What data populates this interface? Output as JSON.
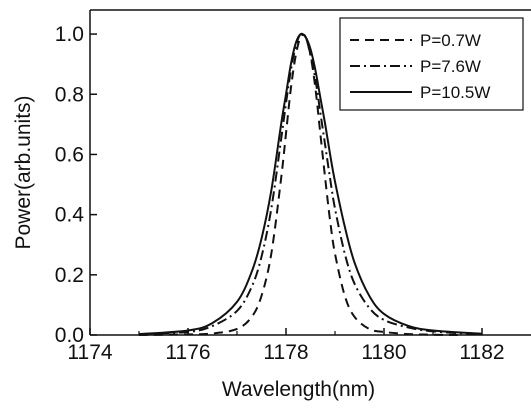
{
  "chart_data": {
    "type": "line",
    "title": "",
    "xlabel": "Wavelength(nm)",
    "ylabel": "Power(arb.units)",
    "xlim": [
      1174,
      1183
    ],
    "ylim": [
      0.0,
      1.08
    ],
    "xticks": [
      1174,
      1176,
      1178,
      1180,
      1182
    ],
    "xtick_labels": [
      "1174",
      "1176",
      "1178",
      "1180",
      "1182"
    ],
    "yticks": [
      0.0,
      0.2,
      0.4,
      0.6,
      0.8,
      1.0
    ],
    "ytick_labels": [
      "0.0",
      "0.2",
      "0.4",
      "0.6",
      "0.8",
      "1.0"
    ],
    "grid": false,
    "legend_position": "top-right",
    "colors": {
      "line": "#111111",
      "frame": "#111111",
      "background": "#ffffff"
    },
    "series": [
      {
        "name": "P=0.7W",
        "line_style": "dashed",
        "x": [
          1175.0,
          1176.0,
          1176.5,
          1177.0,
          1177.3,
          1177.5,
          1177.7,
          1177.9,
          1178.0,
          1178.1,
          1178.2,
          1178.3,
          1178.4,
          1178.5,
          1178.6,
          1178.7,
          1178.8,
          1178.9,
          1179.0,
          1179.2,
          1179.4,
          1179.7,
          1180.0,
          1180.5,
          1181.0,
          1181.5
        ],
        "y": [
          0.0,
          0.002,
          0.005,
          0.02,
          0.06,
          0.13,
          0.27,
          0.52,
          0.67,
          0.82,
          0.93,
          0.99,
          0.99,
          0.93,
          0.82,
          0.67,
          0.52,
          0.38,
          0.27,
          0.13,
          0.06,
          0.02,
          0.01,
          0.003,
          0.001,
          0.0
        ]
      },
      {
        "name": "P=7.6W",
        "line_style": "dashdot",
        "x": [
          1175.0,
          1176.0,
          1176.5,
          1177.0,
          1177.3,
          1177.5,
          1177.7,
          1177.9,
          1178.0,
          1178.1,
          1178.2,
          1178.3,
          1178.4,
          1178.5,
          1178.6,
          1178.7,
          1178.8,
          1178.9,
          1179.0,
          1179.2,
          1179.4,
          1179.7,
          1180.0,
          1180.5,
          1181.0,
          1182.0
        ],
        "y": [
          0.003,
          0.01,
          0.03,
          0.08,
          0.16,
          0.26,
          0.42,
          0.65,
          0.77,
          0.88,
          0.96,
          1.0,
          0.99,
          0.93,
          0.85,
          0.74,
          0.63,
          0.52,
          0.42,
          0.27,
          0.17,
          0.09,
          0.05,
          0.025,
          0.012,
          0.002
        ]
      },
      {
        "name": "P=10.5W",
        "line_style": "solid",
        "x": [
          1175.0,
          1176.0,
          1176.5,
          1177.0,
          1177.3,
          1177.5,
          1177.7,
          1177.9,
          1178.0,
          1178.1,
          1178.2,
          1178.3,
          1178.4,
          1178.5,
          1178.6,
          1178.7,
          1178.8,
          1178.9,
          1179.0,
          1179.2,
          1179.4,
          1179.7,
          1180.0,
          1180.5,
          1181.0,
          1182.0
        ],
        "y": [
          0.003,
          0.015,
          0.04,
          0.11,
          0.21,
          0.32,
          0.48,
          0.7,
          0.8,
          0.9,
          0.97,
          1.0,
          0.99,
          0.95,
          0.88,
          0.79,
          0.7,
          0.6,
          0.51,
          0.36,
          0.24,
          0.13,
          0.07,
          0.03,
          0.015,
          0.004
        ]
      }
    ]
  }
}
